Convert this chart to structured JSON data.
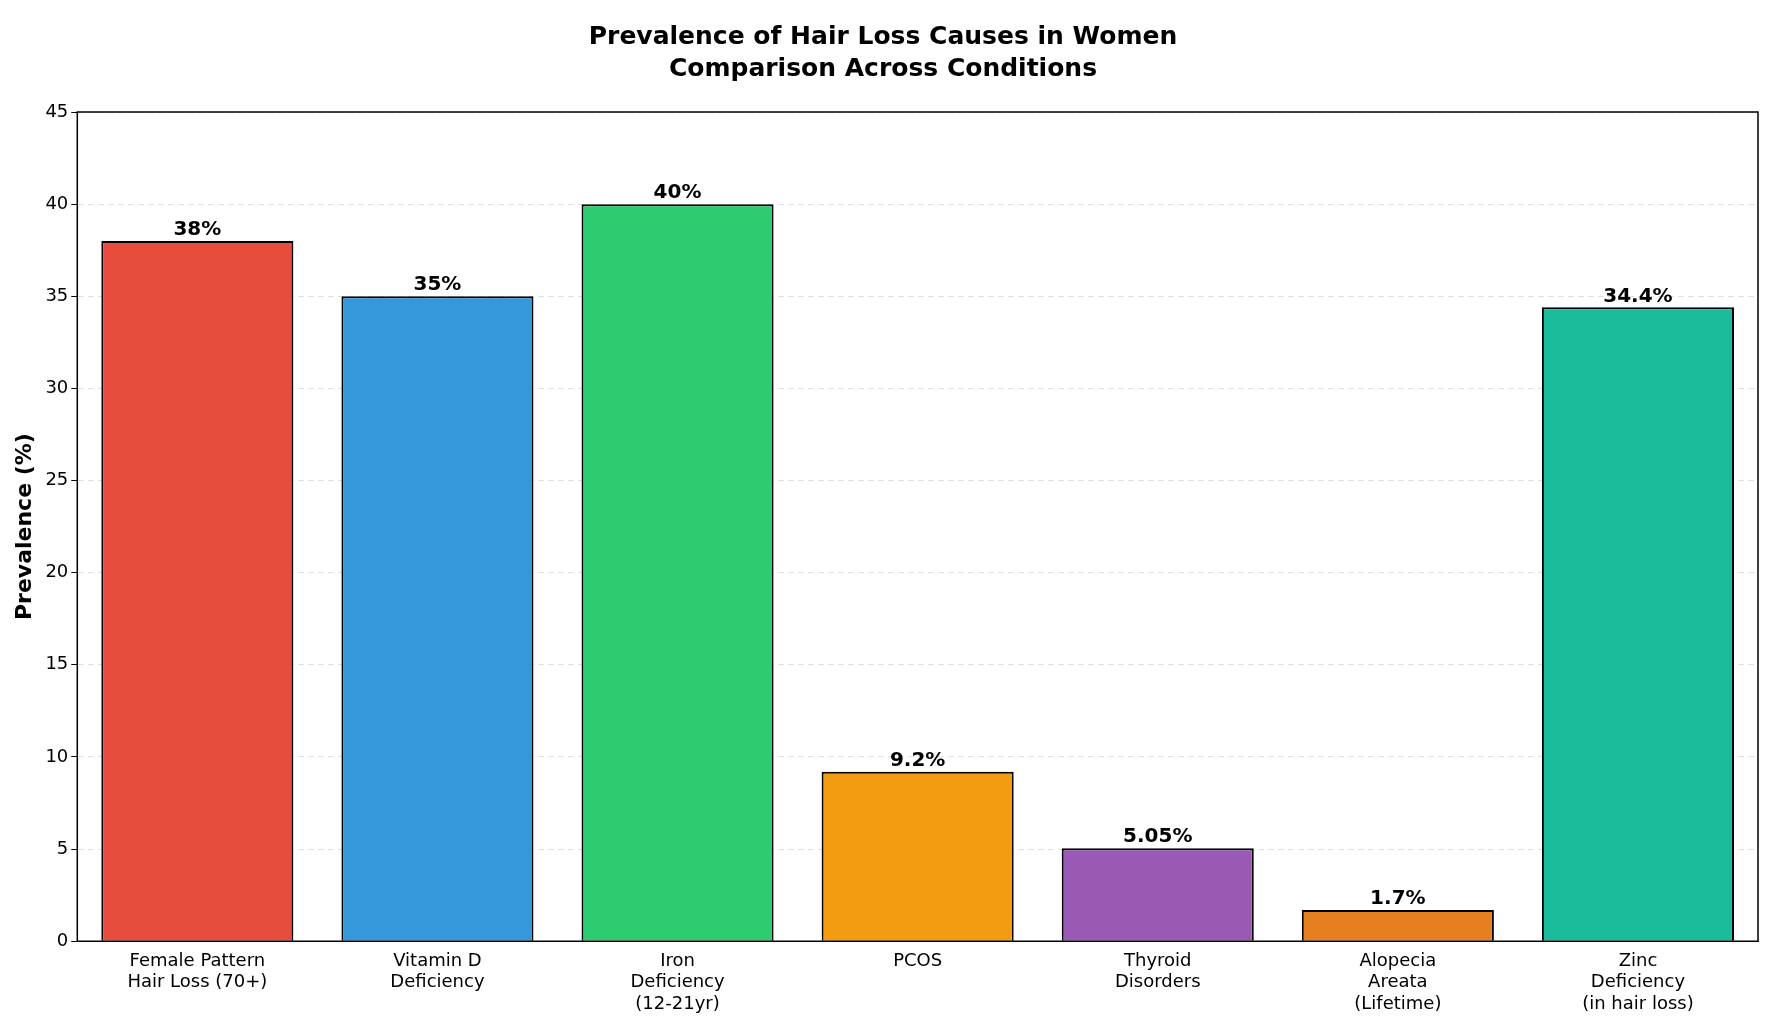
{
  "chart_data": {
    "type": "bar",
    "title": "Prevalence of Hair Loss Causes in Women",
    "subtitle": "Comparison Across Conditions",
    "ylabel": "Prevalence (%)",
    "categories": [
      "Female Pattern\nHair Loss (70+)",
      "Vitamin D\nDeficiency",
      "Iron\nDeficiency\n(12-21yr)",
      "PCOS",
      "Thyroid\nDisorders",
      "Alopecia\nAreata\n(Lifetime)",
      "Zinc\nDeficiency\n(in hair loss)"
    ],
    "values": [
      38,
      35,
      40,
      9.2,
      5.05,
      1.7,
      34.4
    ],
    "colors": [
      "#e74c3c",
      "#3498db",
      "#2ecc71",
      "#f39c12",
      "#9b59b6",
      "#e67e22",
      "#1abc9c"
    ],
    "value_labels": [
      "38%",
      "35%",
      "40%",
      "9.2%",
      "5.05%",
      "1.7%",
      "34.4%"
    ],
    "ylim": [
      0,
      45
    ],
    "yticks": [
      0,
      5,
      10,
      15,
      20,
      25,
      30,
      35,
      40,
      45
    ],
    "grid": "y"
  }
}
